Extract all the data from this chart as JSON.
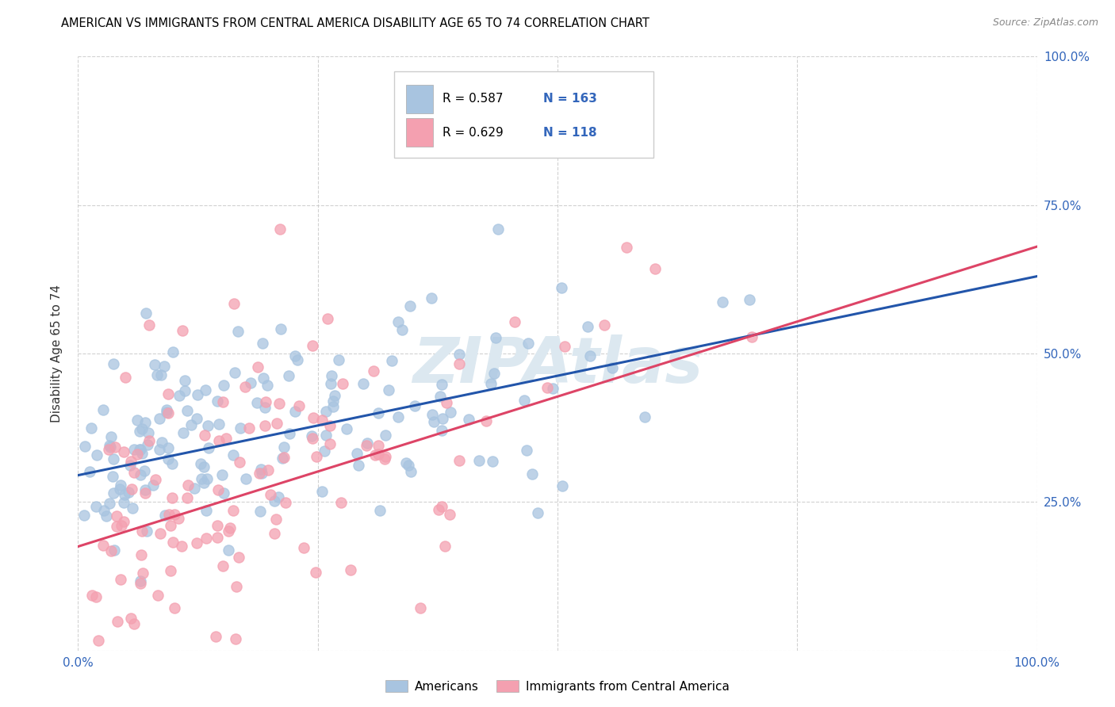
{
  "title": "AMERICAN VS IMMIGRANTS FROM CENTRAL AMERICA DISABILITY AGE 65 TO 74 CORRELATION CHART",
  "source": "Source: ZipAtlas.com",
  "ylabel": "Disability Age 65 to 74",
  "legend_label_1": "Americans",
  "legend_label_2": "Immigrants from Central America",
  "R1": 0.587,
  "N1": 163,
  "R2": 0.629,
  "N2": 118,
  "color_blue": "#a8c4e0",
  "color_pink": "#f4a0b0",
  "line_color_blue": "#2255aa",
  "line_color_pink": "#dd4466",
  "watermark": "ZIPAtlas",
  "xlim": [
    0.0,
    1.0
  ],
  "ylim": [
    0.0,
    1.0
  ],
  "blue_intercept": 0.295,
  "blue_slope": 0.335,
  "pink_intercept": 0.175,
  "pink_slope": 0.505,
  "seed": 99
}
